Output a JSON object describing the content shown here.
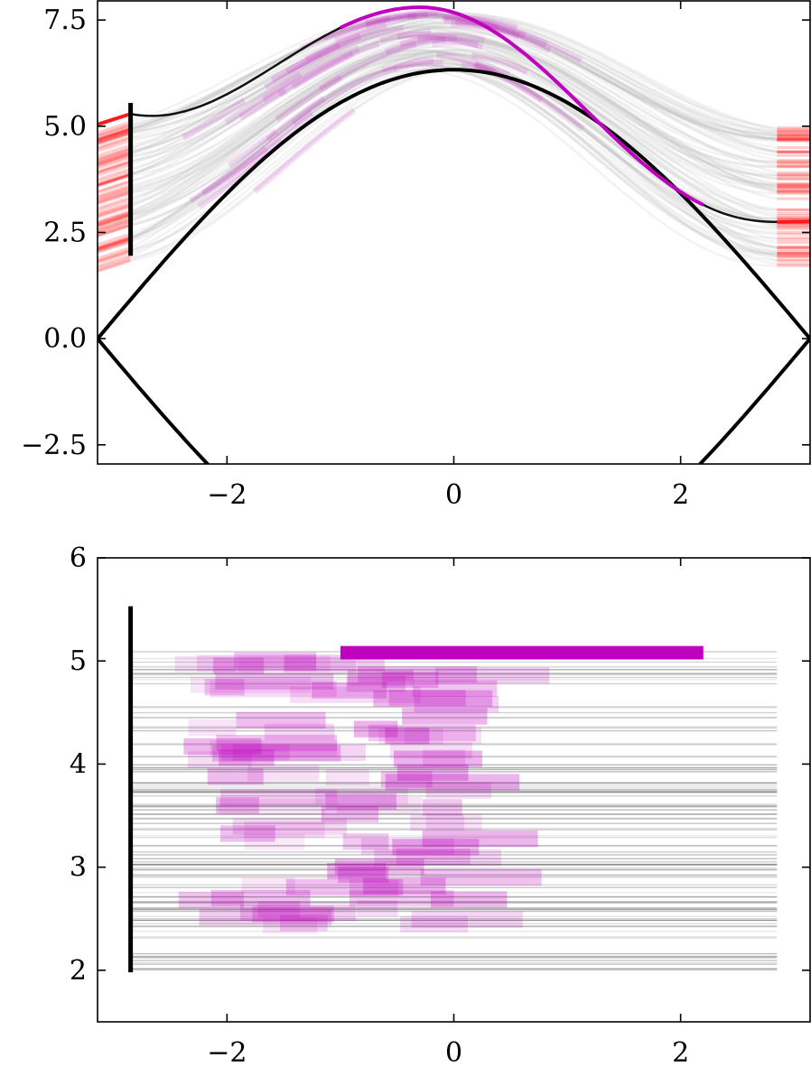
{
  "chart_data": [
    {
      "type": "line",
      "title": "",
      "xlabel": "",
      "ylabel": "",
      "xlim": [
        -3.1416,
        3.1416
      ],
      "ylim": [
        -2.95,
        7.95
      ],
      "x_ticks": [
        -2,
        0,
        2
      ],
      "x_tick_labels": [
        "−2",
        "0",
        "2"
      ],
      "y_ticks": [
        -2.5,
        0.0,
        2.5,
        5.0,
        7.5
      ],
      "y_tick_labels": [
        "−2.5",
        "0.0",
        "2.5",
        "5.0",
        "7.5"
      ],
      "grid": false,
      "colors": {
        "boundary": "#000000",
        "highlight": "#bf00bf",
        "edge": "#ff1a1a",
        "ensemble": "#bbbbbb"
      },
      "series": [
        {
          "role": "upper-boundary",
          "x": [
            -3.1416,
            -2.5,
            -2.0,
            -1.5,
            -1.0,
            -0.5,
            0.0,
            0.5,
            1.0,
            1.5,
            2.0,
            2.5,
            3.1416
          ],
          "y": [
            0.0,
            2.02,
            3.49,
            4.84,
            5.66,
            6.13,
            6.33,
            6.13,
            5.66,
            4.84,
            3.49,
            2.02,
            0.0
          ]
        },
        {
          "role": "lower-boundary",
          "x": [
            -3.1416,
            -2.5,
            -2.2,
            2.2,
            2.5,
            3.1416
          ],
          "y": [
            0.0,
            -2.02,
            -2.95,
            -2.95,
            -2.02,
            0.0
          ]
        },
        {
          "role": "highlighted-trajectory",
          "x": [
            -1.0,
            -0.5,
            -0.3,
            0.0,
            0.5,
            1.0,
            1.5,
            2.0,
            2.2
          ],
          "y": [
            7.55,
            7.78,
            7.8,
            7.78,
            7.4,
            6.7,
            5.75,
            4.5,
            3.8
          ]
        },
        {
          "role": "reference-trajectory",
          "x": [
            -2.85,
            -2.3,
            -2.0,
            -1.5,
            -1.0,
            2.2,
            2.6,
            2.85
          ],
          "y": [
            5.2,
            5.7,
            6.1,
            6.9,
            7.55,
            3.8,
            3.0,
            2.72
          ]
        },
        {
          "role": "edge-segment-left",
          "x": [
            -3.1416,
            -2.85
          ],
          "y": [
            4.95,
            5.2
          ]
        },
        {
          "role": "edge-segment-right",
          "x": [
            2.85,
            3.1416
          ],
          "y": [
            2.72,
            2.75
          ]
        },
        {
          "role": "start-bar",
          "x": [
            -2.85,
            -2.85
          ],
          "y": [
            1.95,
            5.55
          ]
        }
      ]
    },
    {
      "type": "bar",
      "orientation": "horizontal",
      "title": "",
      "xlabel": "",
      "ylabel": "",
      "xlim": [
        -3.1416,
        3.1416
      ],
      "ylim": [
        1.5,
        6.0
      ],
      "x_ticks": [
        -2,
        0,
        2
      ],
      "x_tick_labels": [
        "−2",
        "0",
        "2"
      ],
      "y_ticks": [
        2,
        3,
        4,
        5,
        6
      ],
      "y_tick_labels": [
        "2",
        "3",
        "4",
        "5",
        "6"
      ],
      "grid": false,
      "highlight_bar": {
        "x_start": -1.0,
        "x_end": 2.2,
        "y": 5.08,
        "height": 0.13
      },
      "start_bar": {
        "x": -2.85,
        "y": [
          1.98,
          5.53
        ]
      },
      "reference_lines": {
        "x_start": -2.85,
        "x_end": 2.85
      }
    }
  ]
}
